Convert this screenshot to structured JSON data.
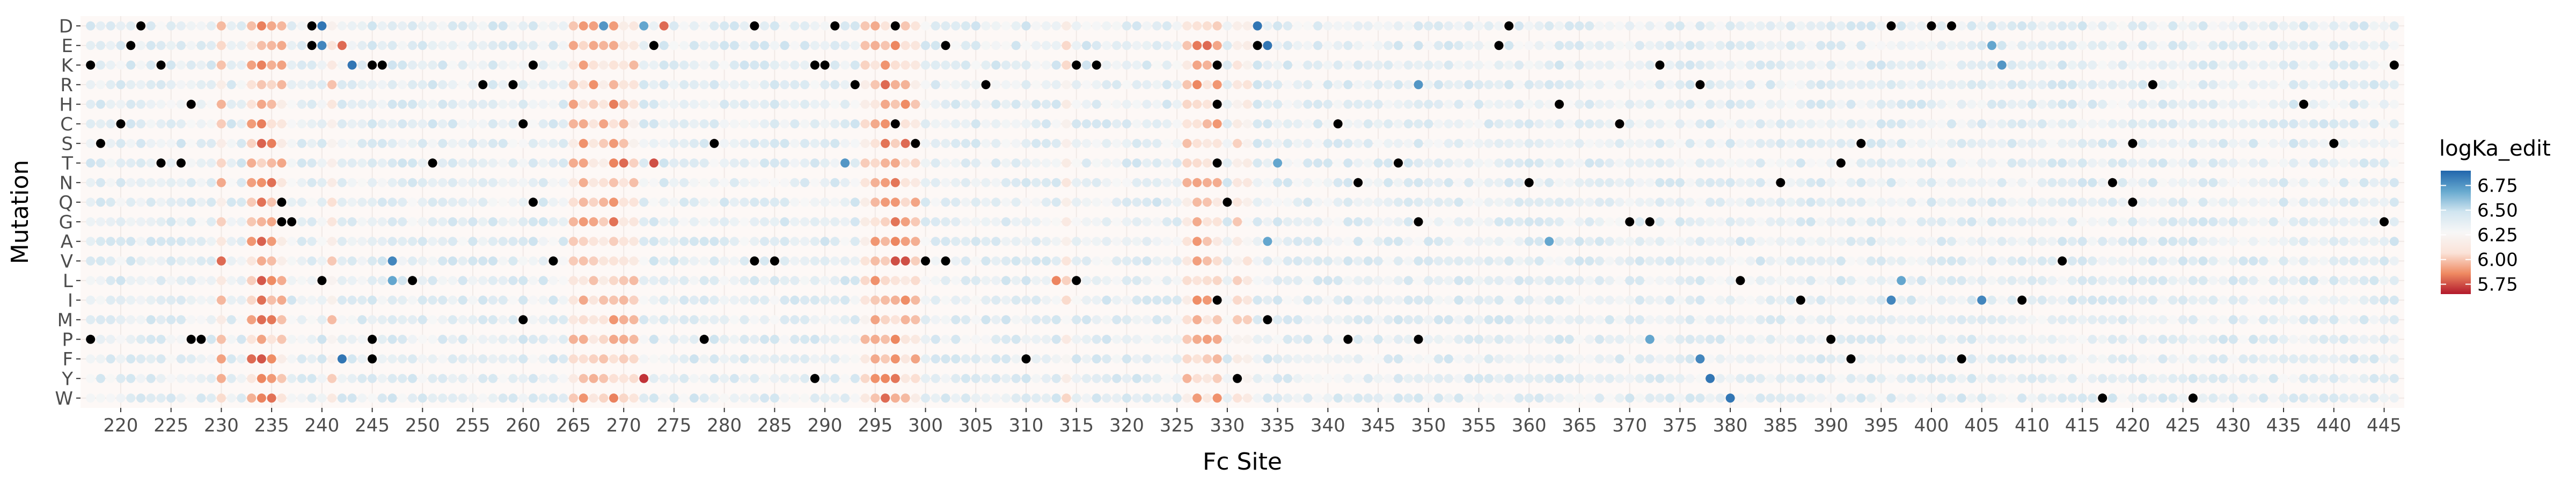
{
  "chart_data": {
    "type": "scatter",
    "title": "",
    "xlabel": "Fc Site",
    "ylabel": "Mutation",
    "x_range": [
      216,
      447
    ],
    "x_ticks": [
      220,
      225,
      230,
      235,
      240,
      245,
      250,
      255,
      260,
      265,
      270,
      275,
      280,
      285,
      290,
      295,
      300,
      305,
      310,
      315,
      320,
      325,
      330,
      335,
      340,
      345,
      350,
      355,
      360,
      365,
      370,
      375,
      380,
      385,
      390,
      395,
      400,
      405,
      410,
      415,
      420,
      425,
      430,
      435,
      440,
      445
    ],
    "categories_y": [
      "D",
      "E",
      "K",
      "R",
      "H",
      "C",
      "S",
      "T",
      "N",
      "Q",
      "G",
      "A",
      "V",
      "L",
      "I",
      "M",
      "P",
      "F",
      "Y",
      "W"
    ],
    "grid": true,
    "legend": {
      "title": "logKa_edit",
      "position": "right",
      "min": 5.65,
      "max": 6.9,
      "ticks": [
        "6.75",
        "6.50",
        "6.25",
        "6.00",
        "5.75"
      ],
      "tick_values": [
        6.75,
        6.5,
        6.25,
        6.0,
        5.75
      ],
      "colors": [
        "#b2182b",
        "#ef8a62",
        "#fbe3d8",
        "#f7f7f7",
        "#d1e5f0",
        "#67a9cf",
        "#2166ac"
      ]
    },
    "missing_color": "#000000",
    "point_note": "one point per site (217-446) per mutation; colour encodes logKa_edit; black = no value",
    "hot_sites": [
      {
        "site": 230,
        "value": 6.05
      },
      {
        "site": 233,
        "value": 6.0
      },
      {
        "site": 234,
        "value": 5.9
      },
      {
        "site": 235,
        "value": 5.95
      },
      {
        "site": 236,
        "value": 6.05
      },
      {
        "site": 241,
        "value": 6.1
      },
      {
        "site": 265,
        "value": 6.05
      },
      {
        "site": 266,
        "value": 6.0
      },
      {
        "site": 267,
        "value": 6.0
      },
      {
        "site": 268,
        "value": 6.05
      },
      {
        "site": 269,
        "value": 5.95
      },
      {
        "site": 270,
        "value": 6.05
      },
      {
        "site": 271,
        "value": 6.1
      },
      {
        "site": 294,
        "value": 6.1
      },
      {
        "site": 295,
        "value": 6.0
      },
      {
        "site": 296,
        "value": 5.95
      },
      {
        "site": 297,
        "value": 5.95
      },
      {
        "site": 298,
        "value": 6.0
      },
      {
        "site": 299,
        "value": 6.05
      },
      {
        "site": 314,
        "value": 6.15
      },
      {
        "site": 326,
        "value": 6.05
      },
      {
        "site": 327,
        "value": 5.95
      },
      {
        "site": 328,
        "value": 6.0
      },
      {
        "site": 329,
        "value": 6.0
      },
      {
        "site": 331,
        "value": 6.1
      },
      {
        "site": 332,
        "value": 6.15
      }
    ],
    "blue_points": [
      {
        "site": 240,
        "mutation": "D",
        "value": 6.85
      },
      {
        "site": 240,
        "mutation": "E",
        "value": 6.8
      },
      {
        "site": 243,
        "mutation": "K",
        "value": 6.85
      },
      {
        "site": 268,
        "mutation": "D",
        "value": 6.75
      },
      {
        "site": 272,
        "mutation": "D",
        "value": 6.7
      },
      {
        "site": 333,
        "mutation": "D",
        "value": 6.85
      },
      {
        "site": 334,
        "mutation": "E",
        "value": 6.85
      },
      {
        "site": 349,
        "mutation": "R",
        "value": 6.75
      },
      {
        "site": 292,
        "mutation": "T",
        "value": 6.75
      },
      {
        "site": 335,
        "mutation": "T",
        "value": 6.7
      },
      {
        "site": 247,
        "mutation": "V",
        "value": 6.8
      },
      {
        "site": 247,
        "mutation": "L",
        "value": 6.7
      },
      {
        "site": 334,
        "mutation": "A",
        "value": 6.7
      },
      {
        "site": 362,
        "mutation": "A",
        "value": 6.7
      },
      {
        "site": 396,
        "mutation": "I",
        "value": 6.8
      },
      {
        "site": 405,
        "mutation": "I",
        "value": 6.8
      },
      {
        "site": 378,
        "mutation": "Y",
        "value": 6.85
      },
      {
        "site": 380,
        "mutation": "W",
        "value": 6.85
      },
      {
        "site": 377,
        "mutation": "F",
        "value": 6.8
      },
      {
        "site": 242,
        "mutation": "F",
        "value": 6.85
      },
      {
        "site": 372,
        "mutation": "P",
        "value": 6.7
      },
      {
        "site": 407,
        "mutation": "K",
        "value": 6.75
      },
      {
        "site": 406,
        "mutation": "E",
        "value": 6.7
      },
      {
        "site": 397,
        "mutation": "L",
        "value": 6.7
      }
    ],
    "red_points": [
      {
        "site": 273,
        "mutation": "T",
        "value": 5.75
      },
      {
        "site": 270,
        "mutation": "T",
        "value": 5.8
      },
      {
        "site": 272,
        "mutation": "Y",
        "value": 5.7
      },
      {
        "site": 297,
        "mutation": "V",
        "value": 5.75
      },
      {
        "site": 298,
        "mutation": "V",
        "value": 5.75
      },
      {
        "site": 296,
        "mutation": "R",
        "value": 5.8
      },
      {
        "site": 298,
        "mutation": "S",
        "value": 5.8
      },
      {
        "site": 233,
        "mutation": "F",
        "value": 5.8
      },
      {
        "site": 230,
        "mutation": "V",
        "value": 5.8
      },
      {
        "site": 242,
        "mutation": "E",
        "value": 5.8
      },
      {
        "site": 328,
        "mutation": "E",
        "value": 5.8
      },
      {
        "site": 274,
        "mutation": "D",
        "value": 5.8
      },
      {
        "site": 313,
        "mutation": "L",
        "value": 5.85
      },
      {
        "site": 296,
        "mutation": "W",
        "value": 5.8
      }
    ],
    "missing_points": [
      {
        "site": 222,
        "mutation": "D"
      },
      {
        "site": 239,
        "mutation": "D"
      },
      {
        "site": 283,
        "mutation": "D"
      },
      {
        "site": 291,
        "mutation": "D"
      },
      {
        "site": 297,
        "mutation": "D"
      },
      {
        "site": 358,
        "mutation": "D"
      },
      {
        "site": 396,
        "mutation": "D"
      },
      {
        "site": 400,
        "mutation": "D"
      },
      {
        "site": 402,
        "mutation": "D"
      },
      {
        "site": 221,
        "mutation": "E"
      },
      {
        "site": 239,
        "mutation": "E"
      },
      {
        "site": 273,
        "mutation": "E"
      },
      {
        "site": 302,
        "mutation": "E"
      },
      {
        "site": 333,
        "mutation": "E"
      },
      {
        "site": 357,
        "mutation": "E"
      },
      {
        "site": 217,
        "mutation": "K"
      },
      {
        "site": 224,
        "mutation": "K"
      },
      {
        "site": 245,
        "mutation": "K"
      },
      {
        "site": 246,
        "mutation": "K"
      },
      {
        "site": 261,
        "mutation": "K"
      },
      {
        "site": 289,
        "mutation": "K"
      },
      {
        "site": 290,
        "mutation": "K"
      },
      {
        "site": 315,
        "mutation": "K"
      },
      {
        "site": 317,
        "mutation": "K"
      },
      {
        "site": 329,
        "mutation": "K"
      },
      {
        "site": 373,
        "mutation": "K"
      },
      {
        "site": 446,
        "mutation": "K"
      },
      {
        "site": 256,
        "mutation": "R"
      },
      {
        "site": 259,
        "mutation": "R"
      },
      {
        "site": 293,
        "mutation": "R"
      },
      {
        "site": 306,
        "mutation": "R"
      },
      {
        "site": 377,
        "mutation": "R"
      },
      {
        "site": 422,
        "mutation": "R"
      },
      {
        "site": 227,
        "mutation": "H"
      },
      {
        "site": 329,
        "mutation": "H"
      },
      {
        "site": 363,
        "mutation": "H"
      },
      {
        "site": 437,
        "mutation": "H"
      },
      {
        "site": 220,
        "mutation": "C"
      },
      {
        "site": 260,
        "mutation": "C"
      },
      {
        "site": 297,
        "mutation": "C"
      },
      {
        "site": 341,
        "mutation": "C"
      },
      {
        "site": 369,
        "mutation": "C"
      },
      {
        "site": 218,
        "mutation": "S"
      },
      {
        "site": 279,
        "mutation": "S"
      },
      {
        "site": 299,
        "mutation": "S"
      },
      {
        "site": 393,
        "mutation": "S"
      },
      {
        "site": 420,
        "mutation": "S"
      },
      {
        "site": 440,
        "mutation": "S"
      },
      {
        "site": 224,
        "mutation": "T"
      },
      {
        "site": 226,
        "mutation": "T"
      },
      {
        "site": 251,
        "mutation": "T"
      },
      {
        "site": 329,
        "mutation": "T"
      },
      {
        "site": 347,
        "mutation": "T"
      },
      {
        "site": 391,
        "mutation": "T"
      },
      {
        "site": 343,
        "mutation": "N"
      },
      {
        "site": 360,
        "mutation": "N"
      },
      {
        "site": 385,
        "mutation": "N"
      },
      {
        "site": 418,
        "mutation": "N"
      },
      {
        "site": 236,
        "mutation": "Q"
      },
      {
        "site": 261,
        "mutation": "Q"
      },
      {
        "site": 330,
        "mutation": "Q"
      },
      {
        "site": 420,
        "mutation": "Q"
      },
      {
        "site": 236,
        "mutation": "G"
      },
      {
        "site": 237,
        "mutation": "G"
      },
      {
        "site": 349,
        "mutation": "G"
      },
      {
        "site": 370,
        "mutation": "G"
      },
      {
        "site": 372,
        "mutation": "G"
      },
      {
        "site": 445,
        "mutation": "G"
      },
      {
        "site": 263,
        "mutation": "V"
      },
      {
        "site": 283,
        "mutation": "V"
      },
      {
        "site": 285,
        "mutation": "V"
      },
      {
        "site": 300,
        "mutation": "V"
      },
      {
        "site": 302,
        "mutation": "V"
      },
      {
        "site": 413,
        "mutation": "V"
      },
      {
        "site": 240,
        "mutation": "L"
      },
      {
        "site": 249,
        "mutation": "L"
      },
      {
        "site": 315,
        "mutation": "L"
      },
      {
        "site": 381,
        "mutation": "L"
      },
      {
        "site": 329,
        "mutation": "I"
      },
      {
        "site": 387,
        "mutation": "I"
      },
      {
        "site": 409,
        "mutation": "I"
      },
      {
        "site": 260,
        "mutation": "M"
      },
      {
        "site": 334,
        "mutation": "M"
      },
      {
        "site": 217,
        "mutation": "P"
      },
      {
        "site": 227,
        "mutation": "P"
      },
      {
        "site": 228,
        "mutation": "P"
      },
      {
        "site": 245,
        "mutation": "P"
      },
      {
        "site": 278,
        "mutation": "P"
      },
      {
        "site": 342,
        "mutation": "P"
      },
      {
        "site": 349,
        "mutation": "P"
      },
      {
        "site": 390,
        "mutation": "P"
      },
      {
        "site": 245,
        "mutation": "F"
      },
      {
        "site": 310,
        "mutation": "F"
      },
      {
        "site": 392,
        "mutation": "F"
      },
      {
        "site": 403,
        "mutation": "F"
      },
      {
        "site": 289,
        "mutation": "Y"
      },
      {
        "site": 331,
        "mutation": "Y"
      },
      {
        "site": 417,
        "mutation": "W"
      },
      {
        "site": 426,
        "mutation": "W"
      }
    ]
  }
}
